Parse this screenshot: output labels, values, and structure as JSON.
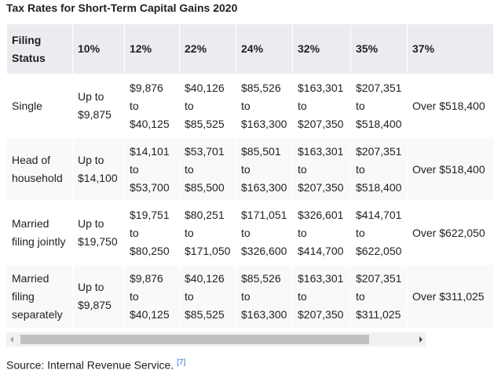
{
  "title": "Tax Rates for Short-Term Capital Gains 2020",
  "table": {
    "header": [
      "Filing Status",
      "10%",
      "12%",
      "22%",
      "24%",
      "32%",
      "35%",
      "37%"
    ],
    "rows": [
      [
        "Single",
        "Up to $9,875",
        "$9,876 to $40,125",
        "$40,126 to $85,525",
        "$85,526 to $163,300",
        "$163,301 to $207,350",
        "$207,351 to $518,400",
        "Over $518,400"
      ],
      [
        "Head of household",
        "Up to $14,100",
        "$14,101 to $53,700",
        "$53,701 to $85,500",
        "$85,501 to $163,300",
        "$163,301 to $207,350",
        "$207,351 to $518,400",
        "Over $518,400"
      ],
      [
        "Married filing jointly",
        "Up to $19,750",
        "$19,751 to $80,250",
        "$80,251 to $171,050",
        "$171,051 to $326,600",
        "$326,601 to $414,700",
        "$414,701 to $622,050",
        "Over $622,050"
      ],
      [
        "Married filing separately",
        "Up to $9,875",
        "$9,876 to $40,125",
        "$40,126 to $85,525",
        "$85,526 to $163,300",
        "$163,301 to $207,350",
        "$207,351 to $311,025",
        "Over $311,025"
      ]
    ]
  },
  "source": {
    "text": "Source: Internal Revenue Service.",
    "ref": "[7]"
  }
}
